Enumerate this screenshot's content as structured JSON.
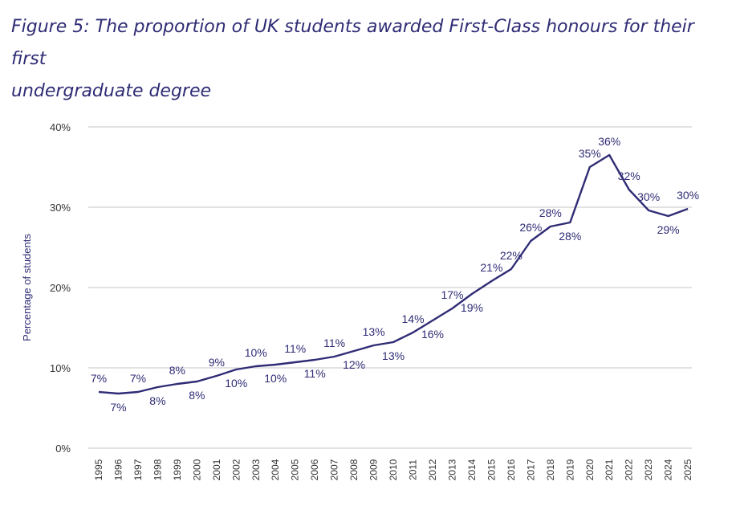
{
  "figure": {
    "title_line1": "Figure 5: The proportion of UK students awarded First-Class honours for their first",
    "title_line2": "undergraduate degree"
  },
  "colors": {
    "line": "#2f2c75",
    "grid": "#d9d9d9",
    "title": "#2f2c75"
  },
  "chart_data": {
    "type": "line",
    "title": "Figure 5: The proportion of UK students awarded First-Class honours for their first undergraduate degree",
    "xlabel": "",
    "ylabel": "Percentage of students",
    "ylim": [
      0,
      40
    ],
    "yticks": [
      "0%",
      "10%",
      "20%",
      "30%",
      "40%"
    ],
    "grid": "horizontal",
    "categories": [
      "1995",
      "1996",
      "1997",
      "1998",
      "1999",
      "2000",
      "2001",
      "2002",
      "2003",
      "2004",
      "2005",
      "2006",
      "2007",
      "2008",
      "2009",
      "2010",
      "2011",
      "2012",
      "2013",
      "2014",
      "2015",
      "2016",
      "2017",
      "2018",
      "2019",
      "2020",
      "2021",
      "2022",
      "2023",
      "2024",
      "2025"
    ],
    "series": [
      {
        "values": [
          7.0,
          6.8,
          7.0,
          7.6,
          8.0,
          8.3,
          9.0,
          9.8,
          10.2,
          10.4,
          10.7,
          11.0,
          11.4,
          12.1,
          12.8,
          13.2,
          14.4,
          15.9,
          17.4,
          19.2,
          20.8,
          22.3,
          25.8,
          27.6,
          28.1,
          35.0,
          36.5,
          32.2,
          29.6,
          28.9,
          29.8
        ],
        "labels": [
          "7%",
          "7%",
          "7%",
          "8%",
          "8%",
          "8%",
          "9%",
          "10%",
          "10%",
          "10%",
          "11%",
          "11%",
          "11%",
          "12%",
          "13%",
          "13%",
          "14%",
          "16%",
          "17%",
          "19%",
          "21%",
          "22%",
          "26%",
          "28%",
          "28%",
          "35%",
          "36%",
          "32%",
          "30%",
          "29%",
          "30%"
        ]
      }
    ]
  }
}
